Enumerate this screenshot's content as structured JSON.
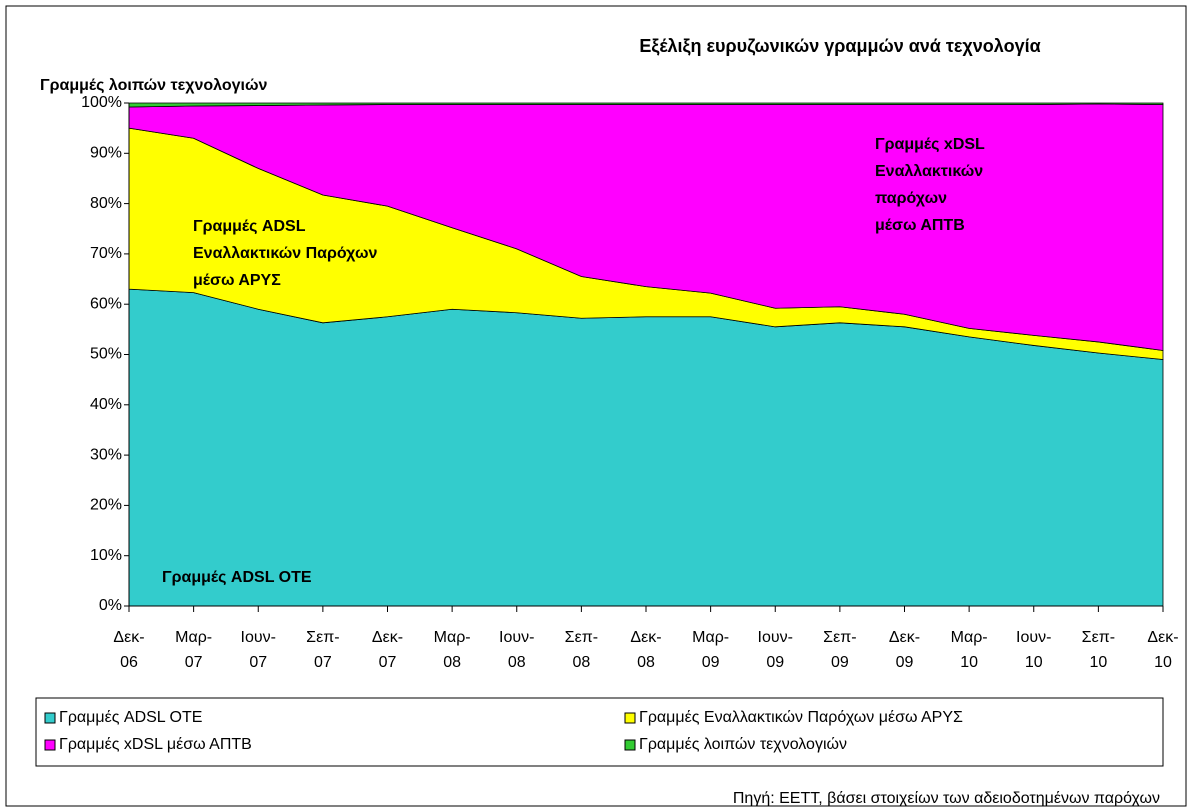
{
  "chart_data": {
    "type": "stacked_area",
    "title": "Εξέλιξη ευρυζωνικών γραμμών ανά τεχνολογία",
    "categories": [
      "Δεκ-06",
      "Μαρ-07",
      "Ιουν-07",
      "Σεπ-07",
      "Δεκ-07",
      "Μαρ-08",
      "Ιουν-08",
      "Σεπ-08",
      "Δεκ-08",
      "Μαρ-09",
      "Ιουν-09",
      "Σεπ-09",
      "Δεκ-09",
      "Μαρ-10",
      "Ιουν-10",
      "Σεπ-10",
      "Δεκ-10"
    ],
    "series": [
      {
        "name": "Γραμμές ADSL ΟΤΕ",
        "color": "#33cccc",
        "values": [
          63,
          62.3,
          59,
          56.3,
          57.5,
          59,
          58.3,
          57.2,
          57.5,
          57.5,
          55.5,
          56.3,
          55.5,
          53.5,
          51.8,
          50.3,
          49
        ]
      },
      {
        "name": "Γραμμές Εναλλακτικών Παρόχων μέσω ΑΡΥΣ",
        "color": "#ffff00",
        "values": [
          32,
          30.7,
          28,
          25.4,
          22,
          16.2,
          12.7,
          8.3,
          6,
          4.7,
          3.7,
          3.2,
          2.5,
          1.7,
          2,
          2.2,
          1.8
        ]
      },
      {
        "name": "Γραμμές xDSL μέσω ΑΠΤΒ",
        "color": "#ff00ff",
        "values": [
          4.2,
          6.4,
          12.5,
          17.9,
          20.2,
          24.5,
          28.7,
          34.2,
          36.2,
          37.5,
          40.5,
          40.2,
          41.7,
          44.5,
          45.9,
          47.3,
          48.9
        ]
      },
      {
        "name": "Γραμμές λοιπών τεχνολογιών",
        "color": "#33cc33",
        "values": [
          0.8,
          0.6,
          0.5,
          0.4,
          0.3,
          0.3,
          0.3,
          0.3,
          0.3,
          0.3,
          0.3,
          0.3,
          0.3,
          0.3,
          0.3,
          0.2,
          0.3
        ]
      }
    ],
    "ylim": [
      0,
      100
    ],
    "yticks": [
      {
        "value": 0,
        "label": "0%"
      },
      {
        "value": 10,
        "label": "10%"
      },
      {
        "value": 20,
        "label": "20%"
      },
      {
        "value": 30,
        "label": "30%"
      },
      {
        "value": 40,
        "label": "40%"
      },
      {
        "value": 50,
        "label": "50%"
      },
      {
        "value": 60,
        "label": "60%"
      },
      {
        "value": 70,
        "label": "70%"
      },
      {
        "value": 80,
        "label": "80%"
      },
      {
        "value": 90,
        "label": "90%"
      },
      {
        "value": 100,
        "label": "100%"
      }
    ],
    "annotations": [
      [
        "Γραμμές λοιπών τεχνολογιών"
      ],
      [
        "Γραμμές ADSL",
        "Εναλλακτικών Παρόχων",
        "μέσω ΑΡΥΣ"
      ],
      [
        "Γραμμές xDSL",
        "Εναλλακτικών",
        "παρόχων",
        "μέσω ΑΠΤΒ"
      ],
      [
        "Γραμμές ADSL ΟΤΕ"
      ]
    ],
    "source": "Πηγή: ΕΕΤΤ, βάσει στοιχείων των αδειοδοτημένων παρόχων",
    "legend": "bottom"
  }
}
